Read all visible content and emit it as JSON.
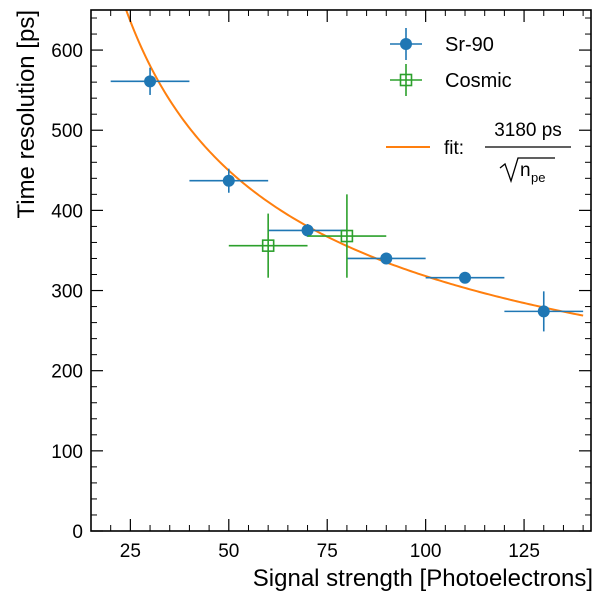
{
  "chart_data": {
    "type": "scatter",
    "xlabel": "Signal strength [Photoelectrons]",
    "ylabel": "Time resolution [ps]",
    "xlim": [
      15,
      142
    ],
    "ylim": [
      0,
      650
    ],
    "xticks": [
      25,
      50,
      75,
      100,
      125
    ],
    "yticks": [
      0,
      100,
      200,
      300,
      400,
      500,
      600
    ],
    "grid": false,
    "legend_position": "top-right",
    "series": [
      {
        "name": "Sr-90",
        "marker": "filled-circle",
        "color": "#1f77b4",
        "points": [
          {
            "x": 30,
            "y": 561,
            "xerr": 10,
            "yerr": 17
          },
          {
            "x": 50,
            "y": 437,
            "xerr": 10,
            "yerr": 15
          },
          {
            "x": 70,
            "y": 375,
            "xerr": 10,
            "yerr": 8
          },
          {
            "x": 90,
            "y": 340,
            "xerr": 10,
            "yerr": 7
          },
          {
            "x": 110,
            "y": 316,
            "xerr": 10,
            "yerr": 7
          },
          {
            "x": 130,
            "y": 274,
            "xerr": 10,
            "yerr": 25
          }
        ]
      },
      {
        "name": "Cosmic",
        "marker": "open-square",
        "color": "#2ca02c",
        "points": [
          {
            "x": 60,
            "y": 356,
            "xerr": 10,
            "yerr": 40
          },
          {
            "x": 80,
            "y": 368,
            "xerr": 10,
            "yerr": 52
          }
        ]
      }
    ],
    "fit": {
      "label": "fit:",
      "numerator": "3180 ps",
      "denominator_symbol": "n",
      "denominator_subscript": "pe",
      "coefficient": 3180,
      "x_range": [
        20,
        140
      ],
      "color": "#ff7f0e"
    }
  }
}
